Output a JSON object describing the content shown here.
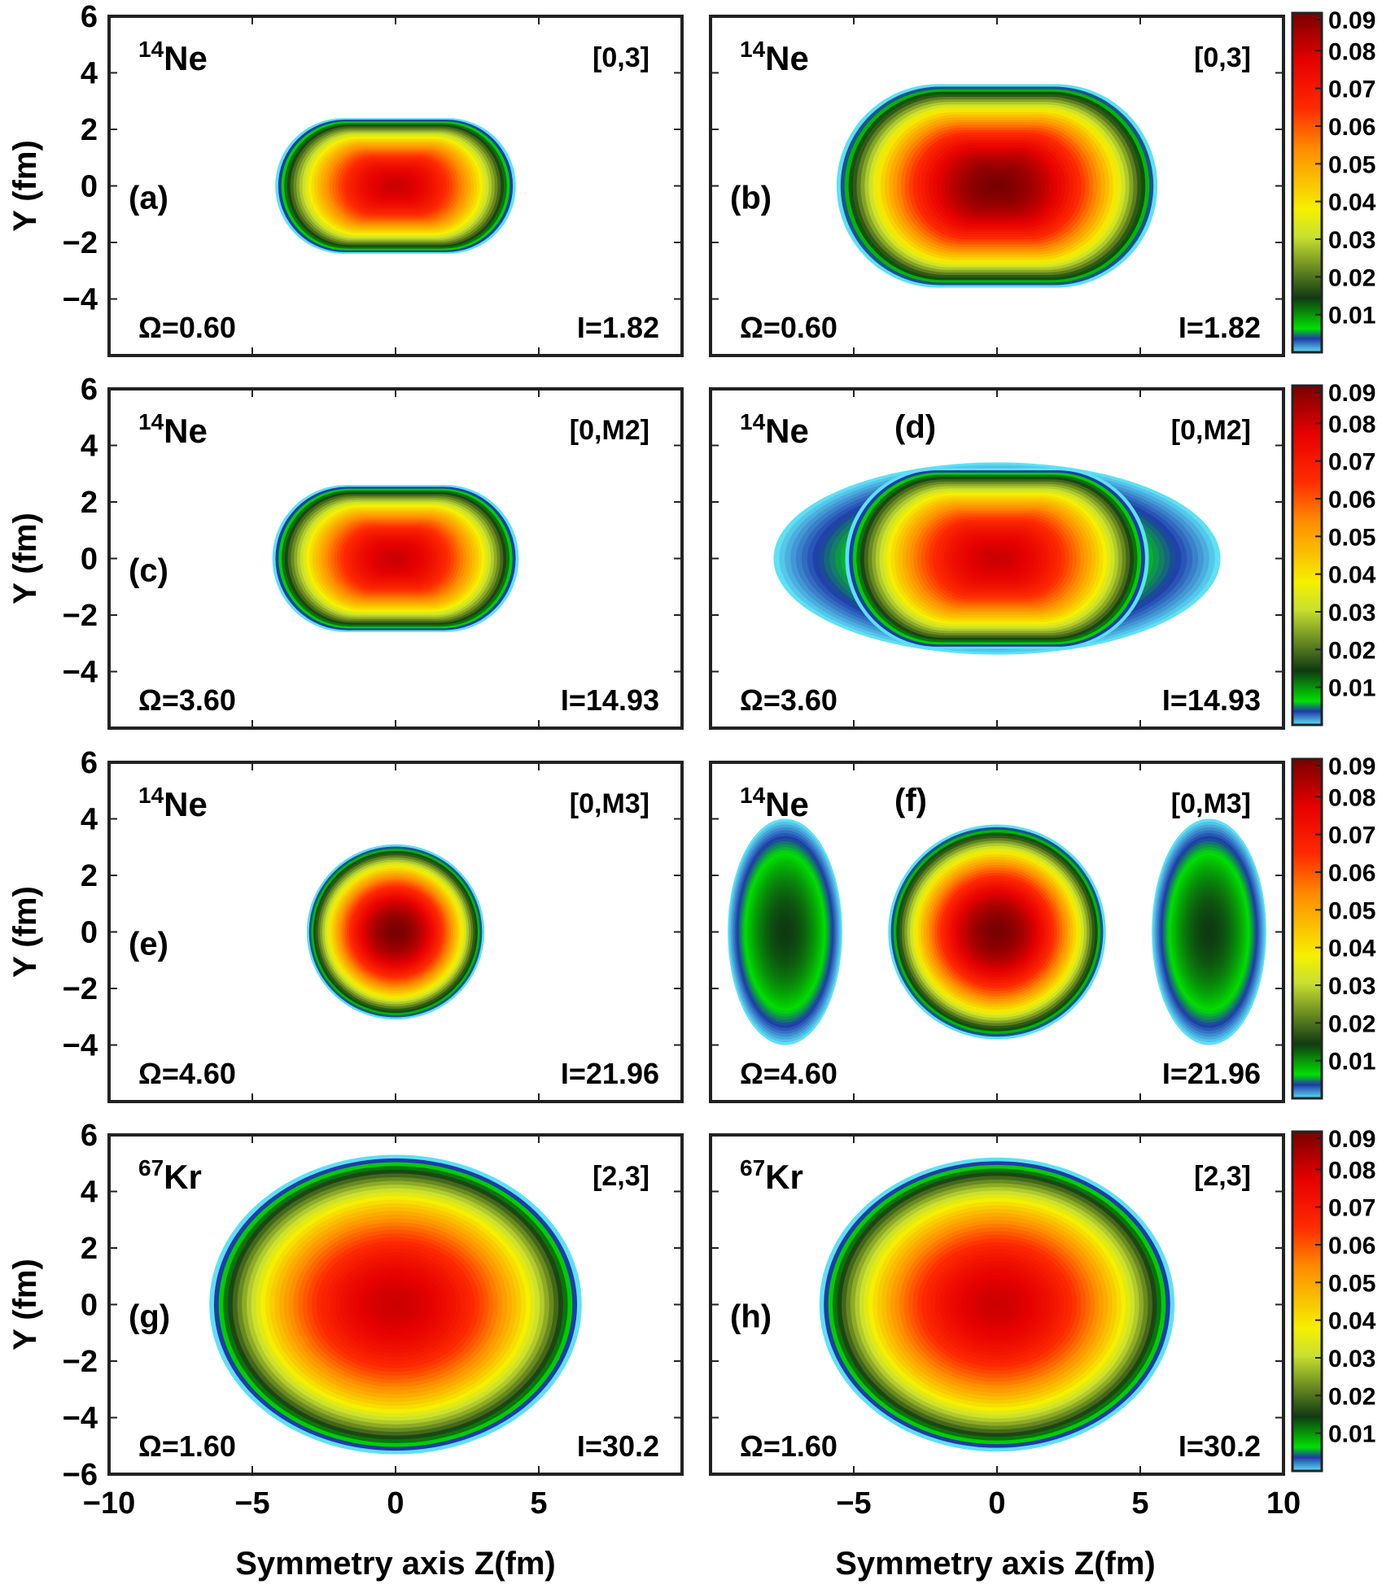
{
  "figure": {
    "xlabel": "Symmetry axis Z(fm)",
    "ylabel": "Y (fm)",
    "x_ticks": [
      -10,
      -5,
      0,
      5,
      10
    ],
    "y_ticks": [
      6,
      4,
      2,
      0,
      -2,
      -4,
      -6
    ],
    "colorbar_ticks": [
      "0.09",
      "0.08",
      "0.07",
      "0.06",
      "0.05",
      "0.04",
      "0.03",
      "0.02",
      "0.01"
    ]
  },
  "chart_data": [
    {
      "type": "heatmap",
      "panel": "(a)",
      "nucleus_mass": "14",
      "nucleus_symbol": "Ne",
      "config": "[0,3]",
      "omega": "Ω=0.60",
      "spin": "I=1.82",
      "xlim": [
        -10,
        10
      ],
      "ylim": [
        -6,
        6
      ],
      "zlim": [
        0,
        0.09
      ],
      "blobs": [
        {
          "cx": 0,
          "rx": 4.2,
          "ry": 2.4,
          "peak": 0.08,
          "kind": "capsule"
        }
      ]
    },
    {
      "type": "heatmap",
      "panel": "(b)",
      "nucleus_mass": "14",
      "nucleus_symbol": "Ne",
      "config": "[0,3]",
      "omega": "Ω=0.60",
      "spin": "I=1.82",
      "xlim": [
        -10,
        10
      ],
      "ylim": [
        -6,
        6
      ],
      "zlim": [
        0,
        0.09
      ],
      "blobs": [
        {
          "cx": 0,
          "rx": 5.6,
          "ry": 3.6,
          "peak": 0.09,
          "kind": "capsule"
        }
      ]
    },
    {
      "type": "heatmap",
      "panel": "(c)",
      "nucleus_mass": "14",
      "nucleus_symbol": "Ne",
      "config": "[0,M2]",
      "omega": "Ω=3.60",
      "spin": "I=14.93",
      "xlim": [
        -10,
        10
      ],
      "ylim": [
        -6,
        6
      ],
      "zlim": [
        0,
        0.09
      ],
      "blobs": [
        {
          "cx": 0,
          "rx": 4.3,
          "ry": 2.6,
          "peak": 0.08,
          "kind": "capsule"
        }
      ]
    },
    {
      "type": "heatmap",
      "panel": "(d)",
      "nucleus_mass": "14",
      "nucleus_symbol": "Ne",
      "config": "[0,M2]",
      "omega": "Ω=3.60",
      "spin": "I=14.93",
      "xlim": [
        -10,
        10
      ],
      "ylim": [
        -6,
        6
      ],
      "zlim": [
        0,
        0.09
      ],
      "blobs": [
        {
          "cx": 0,
          "rx": 7.8,
          "ry": 3.4,
          "peak": 0.012,
          "kind": "ellipse"
        },
        {
          "cx": 0,
          "rx": 5.3,
          "ry": 3.2,
          "peak": 0.08,
          "kind": "capsule"
        }
      ]
    },
    {
      "type": "heatmap",
      "panel": "(e)",
      "nucleus_mass": "14",
      "nucleus_symbol": "Ne",
      "config": "[0,M3]",
      "omega": "Ω=4.60",
      "spin": "I=21.96",
      "xlim": [
        -10,
        10
      ],
      "ylim": [
        -6,
        6
      ],
      "zlim": [
        0,
        0.09
      ],
      "blobs": [
        {
          "cx": 0,
          "rx": 3.1,
          "ry": 3.1,
          "peak": 0.09,
          "kind": "ellipse"
        }
      ]
    },
    {
      "type": "heatmap",
      "panel": "(f)",
      "nucleus_mass": "14",
      "nucleus_symbol": "Ne",
      "config": "[0,M3]",
      "omega": "Ω=4.60",
      "spin": "I=21.96",
      "xlim": [
        -10,
        10
      ],
      "ylim": [
        -6,
        6
      ],
      "zlim": [
        0,
        0.09
      ],
      "blobs": [
        {
          "cx": -7.4,
          "rx": 2.0,
          "ry": 4.0,
          "peak": 0.014,
          "kind": "ellipse"
        },
        {
          "cx": 7.4,
          "rx": 2.0,
          "ry": 4.0,
          "peak": 0.014,
          "kind": "ellipse"
        },
        {
          "cx": 0,
          "rx": 3.8,
          "ry": 3.8,
          "peak": 0.09,
          "kind": "ellipse"
        }
      ]
    },
    {
      "type": "heatmap",
      "panel": "(g)",
      "nucleus_mass": "67",
      "nucleus_symbol": "Kr",
      "config": "[2,3]",
      "omega": "Ω=1.60",
      "spin": "I=30.2",
      "xlim": [
        -10,
        10
      ],
      "ylim": [
        -6,
        6
      ],
      "zlim": [
        0,
        0.09
      ],
      "blobs": [
        {
          "cx": 0,
          "rx": 6.5,
          "ry": 5.3,
          "peak": 0.08,
          "kind": "ellipse"
        }
      ]
    },
    {
      "type": "heatmap",
      "panel": "(h)",
      "nucleus_mass": "67",
      "nucleus_symbol": "Kr",
      "config": "[2,3]",
      "omega": "Ω=1.60",
      "spin": "I=30.2",
      "xlim": [
        -10,
        10
      ],
      "ylim": [
        -6,
        6
      ],
      "zlim": [
        0,
        0.09
      ],
      "blobs": [
        {
          "cx": 0,
          "rx": 6.2,
          "ry": 5.2,
          "peak": 0.08,
          "kind": "ellipse"
        }
      ]
    }
  ]
}
